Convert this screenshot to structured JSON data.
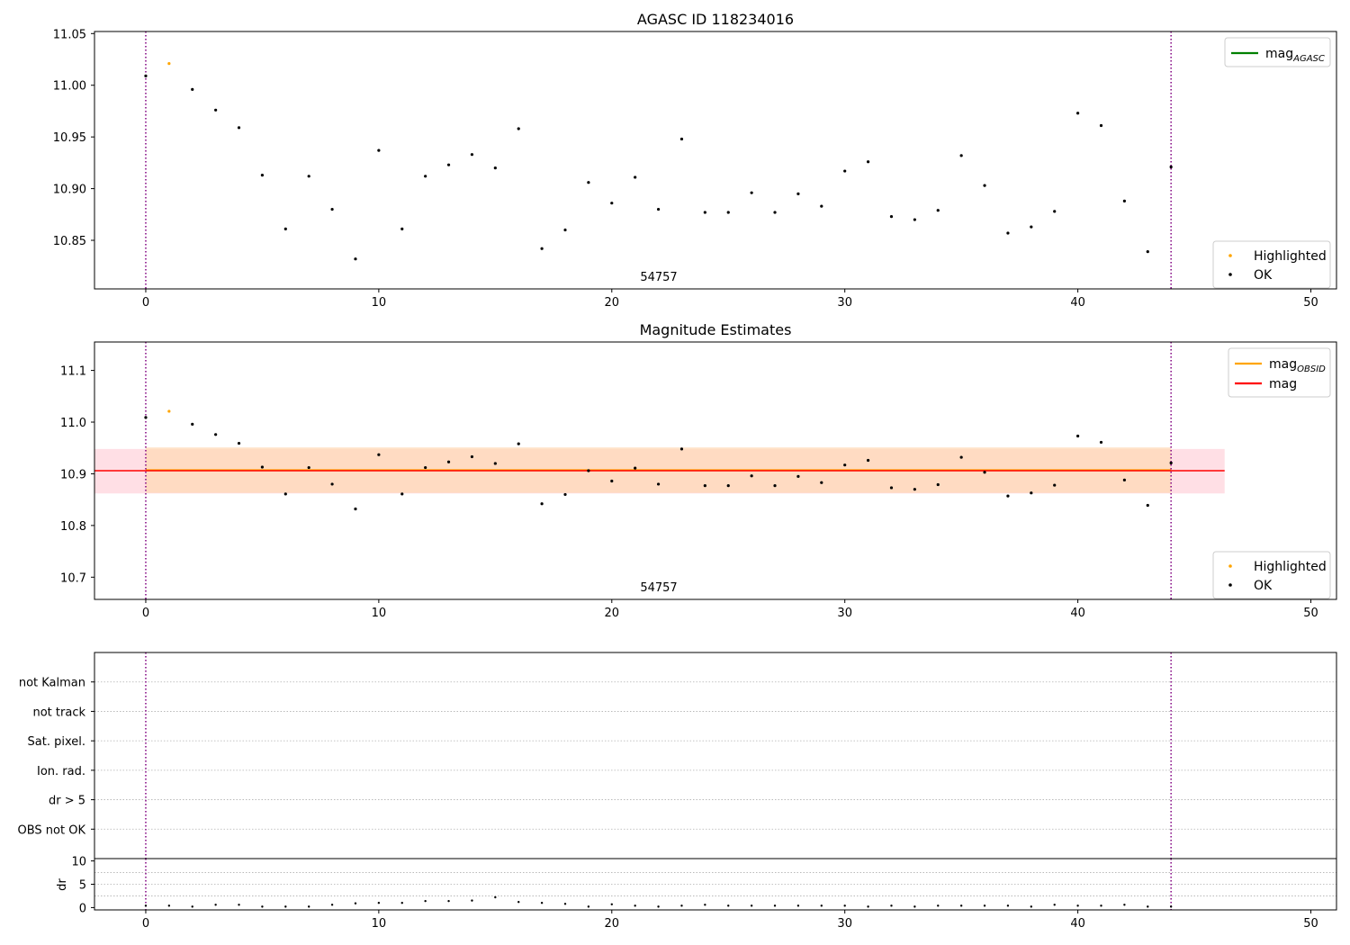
{
  "colors": {
    "ok": "#000000",
    "highlighted": "#ffa500",
    "mag_agasc": "#008000",
    "mag_obsid": "#ffa500",
    "mag": "#ff0000",
    "vline": "#800080",
    "band_red": "#ffc0cb",
    "band_orange": "#ffd9b3"
  },
  "chart_data": [
    {
      "type": "scatter",
      "title": "AGASC ID 118234016",
      "annotation": "54757",
      "xlim": [
        -2.2,
        51.1
      ],
      "ylim": [
        10.803,
        11.052
      ],
      "xticks": [
        0,
        10,
        20,
        30,
        40,
        50
      ],
      "yticks": [
        "10.85",
        "10.90",
        "10.95",
        "11.00",
        "11.05"
      ],
      "vlines": [
        0,
        44
      ],
      "legend_lines": [
        {
          "name": "mag",
          "sub": "AGASC",
          "color": "#008000"
        }
      ],
      "legend_points": [
        {
          "name": "Highlighted",
          "color": "#ffa500"
        },
        {
          "name": "OK",
          "color": "#000000"
        }
      ],
      "series": [
        {
          "name": "OK",
          "x": [
            0,
            2,
            3,
            4,
            5,
            6,
            7,
            8,
            9,
            10,
            11,
            12,
            13,
            14,
            15,
            16,
            17,
            18,
            19,
            20,
            21,
            22,
            23,
            24,
            25,
            26,
            27,
            28,
            29,
            30,
            31,
            32,
            33,
            34,
            35,
            36,
            37,
            38,
            39,
            40,
            41,
            42,
            43,
            44
          ],
          "y": [
            11.009,
            10.996,
            10.976,
            10.959,
            10.913,
            10.861,
            10.912,
            10.88,
            10.832,
            10.937,
            10.861,
            10.912,
            10.923,
            10.933,
            10.92,
            10.958,
            10.842,
            10.86,
            10.906,
            10.886,
            10.911,
            10.88,
            10.948,
            10.877,
            10.877,
            10.896,
            10.877,
            10.895,
            10.883,
            10.917,
            10.926,
            10.873,
            10.87,
            10.879,
            10.932,
            10.903,
            10.857,
            10.863,
            10.878,
            10.973,
            10.961,
            10.888,
            10.839,
            10.921
          ]
        },
        {
          "name": "Highlighted",
          "x": [
            1
          ],
          "y": [
            11.021
          ]
        }
      ]
    },
    {
      "type": "scatter",
      "title": "Magnitude Estimates",
      "annotation": "54757",
      "xlim": [
        -2.2,
        51.1
      ],
      "ylim": [
        10.657,
        11.155
      ],
      "xticks": [
        0,
        10,
        20,
        30,
        40,
        50
      ],
      "yticks": [
        "10.7",
        "10.8",
        "10.9",
        "11.0",
        "11.1"
      ],
      "vlines": [
        0,
        44
      ],
      "mag_line": 10.906,
      "mag_band": [
        10.862,
        10.948
      ],
      "mag_obsid_line": 10.907,
      "mag_obsid_band": [
        10.863,
        10.951
      ],
      "legend_lines": [
        {
          "name": "mag",
          "sub": "OBSID",
          "color": "#ffa500"
        },
        {
          "name": "mag",
          "sub": "",
          "color": "#ff0000"
        }
      ],
      "legend_points": [
        {
          "name": "Highlighted",
          "color": "#ffa500"
        },
        {
          "name": "OK",
          "color": "#000000"
        }
      ],
      "series": [
        {
          "name": "OK",
          "x": [
            0,
            2,
            3,
            4,
            5,
            6,
            7,
            8,
            9,
            10,
            11,
            12,
            13,
            14,
            15,
            16,
            17,
            18,
            19,
            20,
            21,
            22,
            23,
            24,
            25,
            26,
            27,
            28,
            29,
            30,
            31,
            32,
            33,
            34,
            35,
            36,
            37,
            38,
            39,
            40,
            41,
            42,
            43,
            44
          ],
          "y": [
            11.009,
            10.996,
            10.976,
            10.959,
            10.913,
            10.861,
            10.912,
            10.88,
            10.832,
            10.937,
            10.861,
            10.912,
            10.923,
            10.933,
            10.92,
            10.958,
            10.842,
            10.86,
            10.906,
            10.886,
            10.911,
            10.88,
            10.948,
            10.877,
            10.877,
            10.896,
            10.877,
            10.895,
            10.883,
            10.917,
            10.926,
            10.873,
            10.87,
            10.879,
            10.932,
            10.903,
            10.857,
            10.863,
            10.878,
            10.973,
            10.961,
            10.888,
            10.839,
            10.921
          ]
        },
        {
          "name": "Highlighted",
          "x": [
            1
          ],
          "y": [
            11.021
          ]
        }
      ]
    },
    {
      "type": "scatter",
      "title": "",
      "xlim": [
        -2.2,
        51.1
      ],
      "ylim": [
        0,
        7
      ],
      "vlines": [
        0,
        44
      ],
      "categories": [
        "OBS not OK",
        "dr > 5",
        "Ion. rad.",
        "Sat. pixel.",
        "not track",
        "not Kalman"
      ],
      "series": []
    },
    {
      "type": "scatter",
      "title": "",
      "ylabel": "dr",
      "xlim": [
        -2.2,
        51.1
      ],
      "ylim": [
        -0.5,
        10.5
      ],
      "xticks": [
        0,
        10,
        20,
        30,
        40,
        50
      ],
      "yticks": [
        "0",
        "5",
        "10"
      ],
      "vlines": [
        0,
        44
      ],
      "series": [
        {
          "name": "dr",
          "x": [
            0,
            1,
            2,
            3,
            4,
            5,
            6,
            7,
            8,
            9,
            10,
            11,
            12,
            13,
            14,
            15,
            16,
            17,
            18,
            19,
            20,
            21,
            22,
            23,
            24,
            25,
            26,
            27,
            28,
            29,
            30,
            31,
            32,
            33,
            34,
            35,
            36,
            37,
            38,
            39,
            40,
            41,
            42,
            43,
            44
          ],
          "y": [
            0.4,
            0.4,
            0.2,
            0.6,
            0.6,
            0.2,
            0.2,
            0.2,
            0.6,
            0.9,
            1.0,
            1.0,
            1.4,
            1.4,
            1.5,
            2.2,
            1.2,
            1.0,
            0.8,
            0.2,
            0.7,
            0.4,
            0.2,
            0.4,
            0.6,
            0.4,
            0.4,
            0.4,
            0.4,
            0.4,
            0.4,
            0.2,
            0.4,
            0.2,
            0.4,
            0.4,
            0.4,
            0.4,
            0.2,
            0.6,
            0.4,
            0.4,
            0.6,
            0.2,
            0.2
          ]
        }
      ]
    }
  ]
}
